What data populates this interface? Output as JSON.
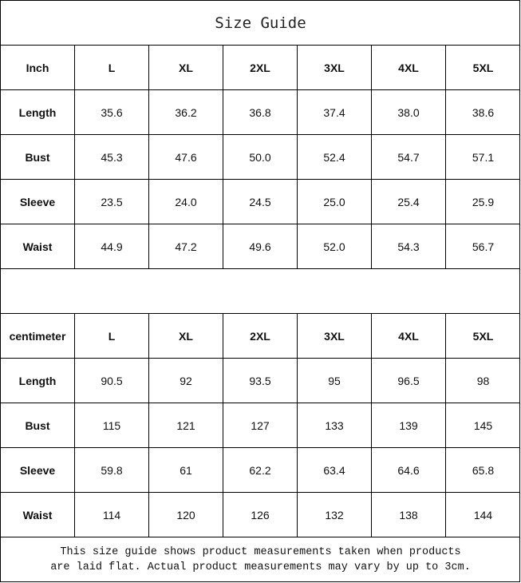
{
  "title": "Size Guide",
  "tables": [
    {
      "unit": "Inch",
      "sizes": [
        "L",
        "XL",
        "2XL",
        "3XL",
        "4XL",
        "5XL"
      ],
      "rows": [
        {
          "label": "Length",
          "values": [
            "35.6",
            "36.2",
            "36.8",
            "37.4",
            "38.0",
            "38.6"
          ]
        },
        {
          "label": "Bust",
          "values": [
            "45.3",
            "47.6",
            "50.0",
            "52.4",
            "54.7",
            "57.1"
          ]
        },
        {
          "label": "Sleeve",
          "values": [
            "23.5",
            "24.0",
            "24.5",
            "25.0",
            "25.4",
            "25.9"
          ]
        },
        {
          "label": "Waist",
          "values": [
            "44.9",
            "47.2",
            "49.6",
            "52.0",
            "54.3",
            "56.7"
          ]
        }
      ]
    },
    {
      "unit": "centimeter",
      "sizes": [
        "L",
        "XL",
        "2XL",
        "3XL",
        "4XL",
        "5XL"
      ],
      "rows": [
        {
          "label": "Length",
          "values": [
            "90.5",
            "92",
            "93.5",
            "95",
            "96.5",
            "98"
          ]
        },
        {
          "label": "Bust",
          "values": [
            "115",
            "121",
            "127",
            "133",
            "139",
            "145"
          ]
        },
        {
          "label": "Sleeve",
          "values": [
            "59.8",
            "61",
            "62.2",
            "63.4",
            "64.6",
            "65.8"
          ]
        },
        {
          "label": "Waist",
          "values": [
            "114",
            "120",
            "126",
            "132",
            "138",
            "144"
          ]
        }
      ]
    }
  ],
  "footer": {
    "line1": "This size guide shows product measurements taken when products",
    "line2": "are laid flat. Actual product measurements may vary by up to 3cm."
  }
}
